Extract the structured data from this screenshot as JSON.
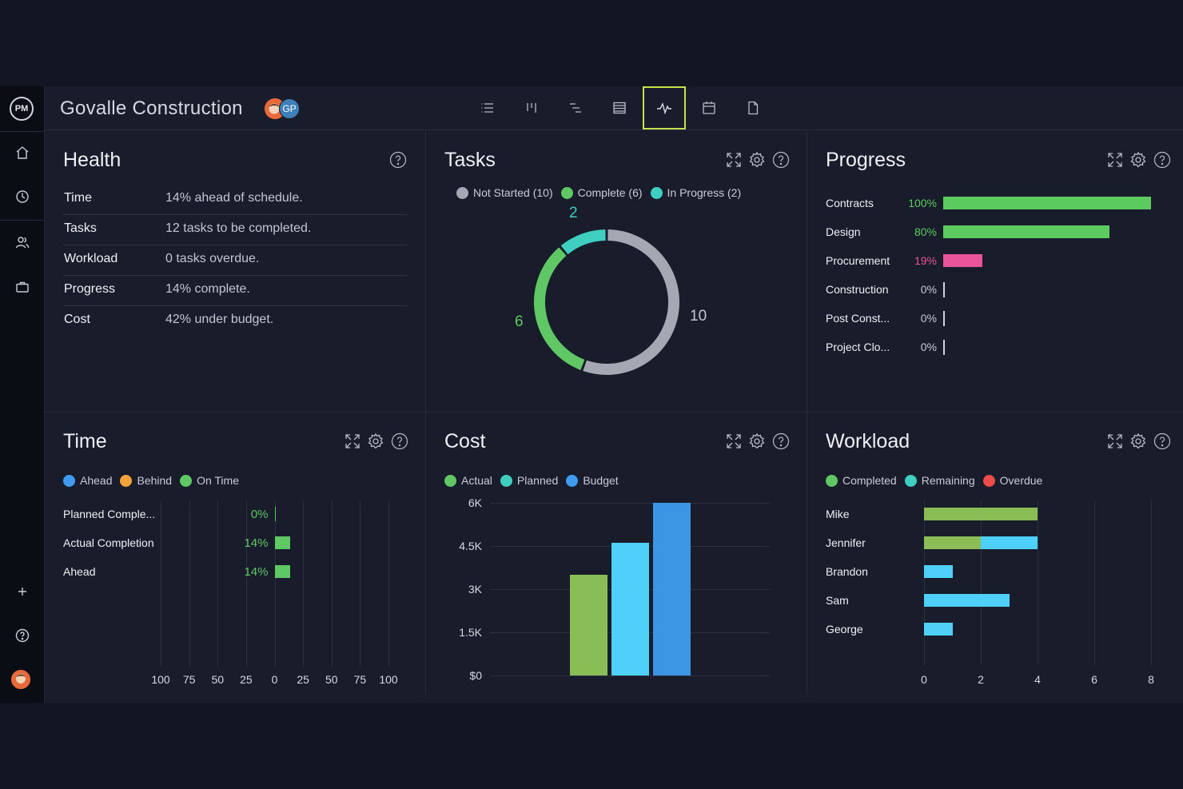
{
  "app": {
    "logo": "PM",
    "project_title": "Govalle Construction",
    "avatar_initials": "GP"
  },
  "sidebar": {
    "items": [
      "home-icon",
      "clock-icon",
      "people-icon",
      "briefcase-icon",
      "plus-icon",
      "help-icon"
    ]
  },
  "view_tabs": [
    {
      "name": "list-view-icon"
    },
    {
      "name": "board-view-icon"
    },
    {
      "name": "gantt-view-icon"
    },
    {
      "name": "sheet-view-icon"
    },
    {
      "name": "dashboard-view-icon",
      "active": true
    },
    {
      "name": "calendar-view-icon"
    },
    {
      "name": "document-view-icon"
    }
  ],
  "health": {
    "title": "Health",
    "rows": [
      {
        "label": "Time",
        "value": "14% ahead of schedule."
      },
      {
        "label": "Tasks",
        "value": "12 tasks to be completed."
      },
      {
        "label": "Workload",
        "value": "0 tasks overdue."
      },
      {
        "label": "Progress",
        "value": "14% complete."
      },
      {
        "label": "Cost",
        "value": "42% under budget."
      }
    ]
  },
  "tasks": {
    "title": "Tasks",
    "legend": [
      {
        "label": "Not Started (10)",
        "color": "#a4a8b3"
      },
      {
        "label": "Complete (6)",
        "color": "#5fc764"
      },
      {
        "label": "In Progress (2)",
        "color": "#3fcfc0"
      }
    ],
    "labels": {
      "in_progress": "2",
      "complete": "6",
      "not_started": "10"
    }
  },
  "progress": {
    "title": "Progress",
    "rows": [
      {
        "label": "Contracts",
        "pct": "100%",
        "value": 100,
        "color": "#5ccb5f"
      },
      {
        "label": "Design",
        "pct": "80%",
        "value": 80,
        "color": "#5ccb5f"
      },
      {
        "label": "Procurement",
        "pct": "19%",
        "value": 19,
        "color": "#e8559a"
      },
      {
        "label": "Construction",
        "pct": "0%",
        "value": 0,
        "color": "#d0d3da"
      },
      {
        "label": "Post Const...",
        "pct": "0%",
        "value": 0,
        "color": "#d0d3da"
      },
      {
        "label": "Project Clo...",
        "pct": "0%",
        "value": 0,
        "color": "#d0d3da"
      }
    ]
  },
  "time": {
    "title": "Time",
    "legend": [
      {
        "label": "Ahead",
        "color": "#3f9bef"
      },
      {
        "label": "Behind",
        "color": "#f3a33a"
      },
      {
        "label": "On Time",
        "color": "#5fc764"
      }
    ],
    "rows": [
      {
        "label": "Planned Comple...",
        "pct": "0%",
        "value": 0
      },
      {
        "label": "Actual Completion",
        "pct": "14%",
        "value": 14
      },
      {
        "label": "Ahead",
        "pct": "14%",
        "value": 14
      }
    ],
    "ticks": [
      "100",
      "75",
      "50",
      "25",
      "0",
      "25",
      "50",
      "75",
      "100"
    ]
  },
  "cost": {
    "title": "Cost",
    "legend": [
      {
        "label": "Actual",
        "color": "#5fc764"
      },
      {
        "label": "Planned",
        "color": "#3fcfc0"
      },
      {
        "label": "Budget",
        "color": "#3f9bef"
      }
    ],
    "y_ticks": [
      "6K",
      "4.5K",
      "3K",
      "1.5K",
      "$0"
    ]
  },
  "workload": {
    "title": "Workload",
    "legend": [
      {
        "label": "Completed",
        "color": "#5fc764"
      },
      {
        "label": "Remaining",
        "color": "#3fcfc0"
      },
      {
        "label": "Overdue",
        "color": "#ef4b4b"
      }
    ],
    "x_ticks": [
      "0",
      "2",
      "4",
      "6",
      "8"
    ]
  },
  "chart_data": [
    {
      "type": "pie",
      "title": "Tasks",
      "categories": [
        "Not Started",
        "Complete",
        "In Progress"
      ],
      "values": [
        10,
        6,
        2
      ],
      "colors": [
        "#a4a8b3",
        "#5fc764",
        "#3fcfc0"
      ]
    },
    {
      "type": "bar",
      "title": "Progress",
      "categories": [
        "Contracts",
        "Design",
        "Procurement",
        "Construction",
        "Post Const...",
        "Project Clo..."
      ],
      "values": [
        100,
        80,
        19,
        0,
        0,
        0
      ],
      "xlim": [
        0,
        100
      ]
    },
    {
      "type": "bar",
      "title": "Time",
      "categories": [
        "Planned Comple...",
        "Actual Completion",
        "Ahead"
      ],
      "values": [
        0,
        14,
        14
      ],
      "xlim": [
        -100,
        100
      ]
    },
    {
      "type": "bar",
      "title": "Cost",
      "categories": [
        ""
      ],
      "series": [
        {
          "name": "Actual",
          "values": [
            3500
          ],
          "color": "#8bbd57"
        },
        {
          "name": "Planned",
          "values": [
            4600
          ],
          "color": "#4fd0f8"
        },
        {
          "name": "Budget",
          "values": [
            6000
          ],
          "color": "#3d96e4"
        }
      ],
      "ylim": [
        0,
        6000
      ]
    },
    {
      "type": "bar",
      "title": "Workload",
      "categories": [
        "Mike",
        "Jennifer",
        "Brandon",
        "Sam",
        "George"
      ],
      "series": [
        {
          "name": "Completed",
          "values": [
            4,
            2,
            0,
            0,
            0
          ],
          "color": "#8bbd57"
        },
        {
          "name": "Remaining",
          "values": [
            0,
            2,
            1,
            3,
            1
          ],
          "color": "#4fd0f8"
        },
        {
          "name": "Overdue",
          "values": [
            0,
            0,
            0,
            0,
            0
          ],
          "color": "#ef4b4b"
        }
      ],
      "xlim": [
        0,
        8
      ]
    }
  ]
}
